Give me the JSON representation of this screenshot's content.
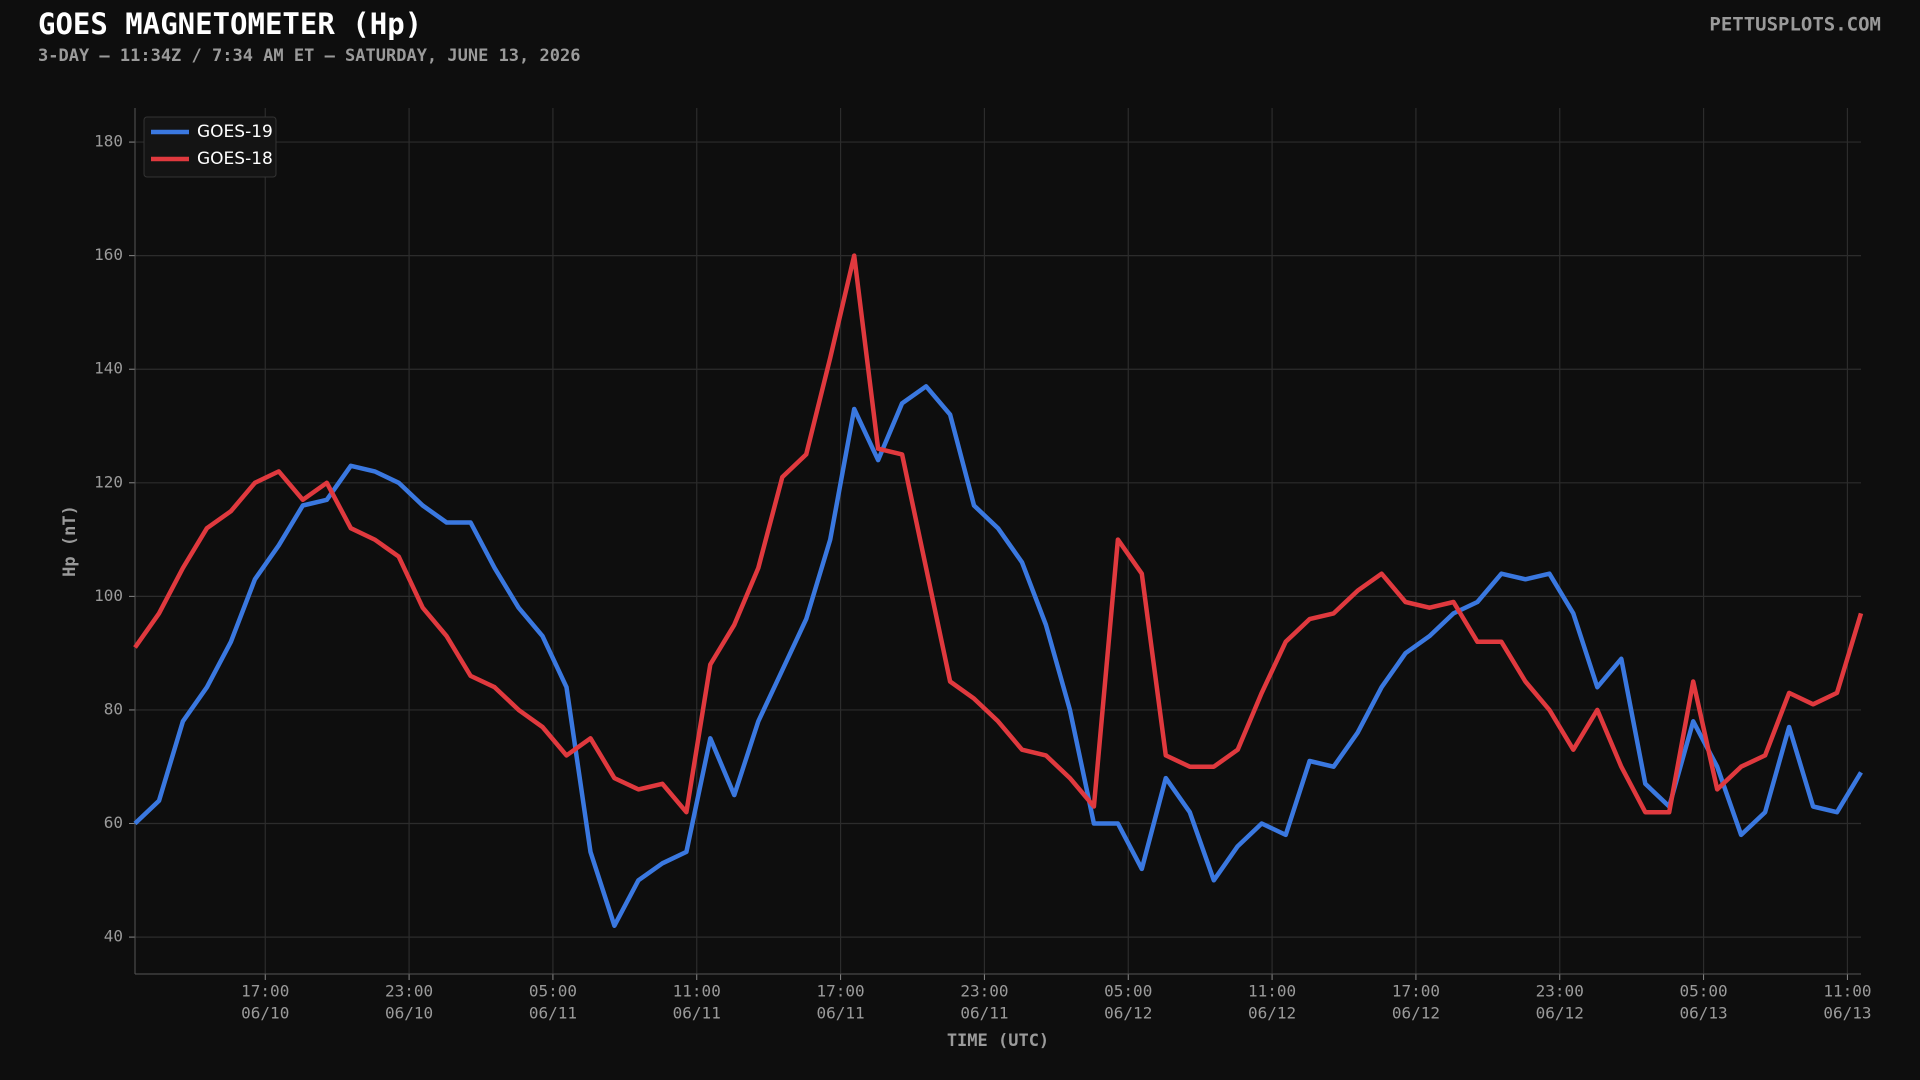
{
  "chart_data": {
    "type": "line",
    "title": "GOES MAGNETOMETER (Hp)",
    "subtitle": "3-DAY — 11:34Z / 7:34 AM ET — SATURDAY, JUNE 13, 2026",
    "brand": "PETTUSPLOTS.COM",
    "x_label": "TIME (UTC)",
    "y_label": "Hp (nT)",
    "legend": "upper left",
    "grid": true,
    "xlim": [
      "06/10 11:34",
      "06/13 11:34"
    ],
    "ylim": [
      33.5,
      186
    ],
    "yticks": [
      40,
      60,
      80,
      100,
      120,
      140,
      160,
      180
    ],
    "xticks": [
      {
        "value": "06/10 17:00",
        "label": [
          "17:00",
          "06/10"
        ]
      },
      {
        "value": "06/10 23:00",
        "label": [
          "23:00",
          "06/10"
        ]
      },
      {
        "value": "06/11 05:00",
        "label": [
          "05:00",
          "06/11"
        ]
      },
      {
        "value": "06/11 11:00",
        "label": [
          "11:00",
          "06/11"
        ]
      },
      {
        "value": "06/11 17:00",
        "label": [
          "17:00",
          "06/11"
        ]
      },
      {
        "value": "06/11 23:00",
        "label": [
          "23:00",
          "06/11"
        ]
      },
      {
        "value": "06/12 05:00",
        "label": [
          "05:00",
          "06/12"
        ]
      },
      {
        "value": "06/12 11:00",
        "label": [
          "11:00",
          "06/12"
        ]
      },
      {
        "value": "06/12 17:00",
        "label": [
          "17:00",
          "06/12"
        ]
      },
      {
        "value": "06/12 23:00",
        "label": [
          "23:00",
          "06/12"
        ]
      },
      {
        "value": "06/13 05:00",
        "label": [
          "05:00",
          "06/13"
        ]
      },
      {
        "value": "06/13 11:00",
        "label": [
          "11:00",
          "06/13"
        ]
      }
    ],
    "x": [
      "06/10 11:34",
      "06/10 12:34",
      "06/10 13:34",
      "06/10 14:34",
      "06/10 15:34",
      "06/10 16:34",
      "06/10 17:34",
      "06/10 18:34",
      "06/10 19:34",
      "06/10 20:34",
      "06/10 21:34",
      "06/10 22:34",
      "06/10 23:34",
      "06/11 00:34",
      "06/11 01:34",
      "06/11 02:34",
      "06/11 03:34",
      "06/11 04:34",
      "06/11 05:34",
      "06/11 06:34",
      "06/11 07:34",
      "06/11 08:34",
      "06/11 09:34",
      "06/11 10:34",
      "06/11 11:34",
      "06/11 12:34",
      "06/11 13:34",
      "06/11 14:34",
      "06/11 15:34",
      "06/11 16:34",
      "06/11 17:34",
      "06/11 18:34",
      "06/11 19:34",
      "06/11 20:34",
      "06/11 21:34",
      "06/11 22:34",
      "06/11 23:34",
      "06/12 00:34",
      "06/12 01:34",
      "06/12 02:34",
      "06/12 03:34",
      "06/12 04:34",
      "06/12 05:34",
      "06/12 06:34",
      "06/12 07:34",
      "06/12 08:34",
      "06/12 09:34",
      "06/12 10:34",
      "06/12 11:34",
      "06/12 12:34",
      "06/12 13:34",
      "06/12 14:34",
      "06/12 15:34",
      "06/12 16:34",
      "06/12 17:34",
      "06/12 18:34",
      "06/12 19:34",
      "06/12 20:34",
      "06/12 21:34",
      "06/12 22:34",
      "06/12 23:34",
      "06/13 00:34",
      "06/13 01:34",
      "06/13 02:34",
      "06/13 03:34",
      "06/13 04:34",
      "06/13 05:34",
      "06/13 06:34",
      "06/13 07:34",
      "06/13 08:34",
      "06/13 09:34",
      "06/13 10:34",
      "06/13 11:34"
    ],
    "series": [
      {
        "name": "GOES-19",
        "color": "#3a78e0",
        "values": [
          60,
          64,
          78,
          84,
          92,
          103,
          109,
          116,
          117,
          123,
          122,
          120,
          116,
          113,
          113,
          105,
          98,
          93,
          84,
          55,
          42,
          50,
          53,
          55,
          75,
          65,
          78,
          87,
          96,
          110,
          133,
          124,
          134,
          137,
          132,
          116,
          112,
          106,
          95,
          80,
          60,
          60,
          52,
          68,
          62,
          50,
          56,
          60,
          58,
          71,
          70,
          76,
          84,
          90,
          93,
          97,
          99,
          104,
          103,
          104,
          97,
          84,
          89,
          67,
          63,
          78,
          70,
          58,
          62,
          77,
          63,
          62,
          69
        ]
      },
      {
        "name": "GOES-18",
        "color": "#e0393e",
        "values": [
          91,
          97,
          105,
          112,
          115,
          120,
          122,
          117,
          120,
          112,
          110,
          107,
          98,
          93,
          86,
          84,
          80,
          77,
          72,
          75,
          68,
          66,
          67,
          62,
          88,
          95,
          105,
          121,
          125,
          142,
          160,
          126,
          125,
          105,
          85,
          82,
          78,
          73,
          72,
          68,
          63,
          110,
          104,
          72,
          70,
          70,
          73,
          83,
          92,
          96,
          97,
          101,
          104,
          99,
          98,
          99,
          92,
          92,
          85,
          80,
          73,
          80,
          70,
          62,
          62,
          85,
          66,
          70,
          72,
          83,
          81,
          83,
          97
        ]
      }
    ]
  }
}
